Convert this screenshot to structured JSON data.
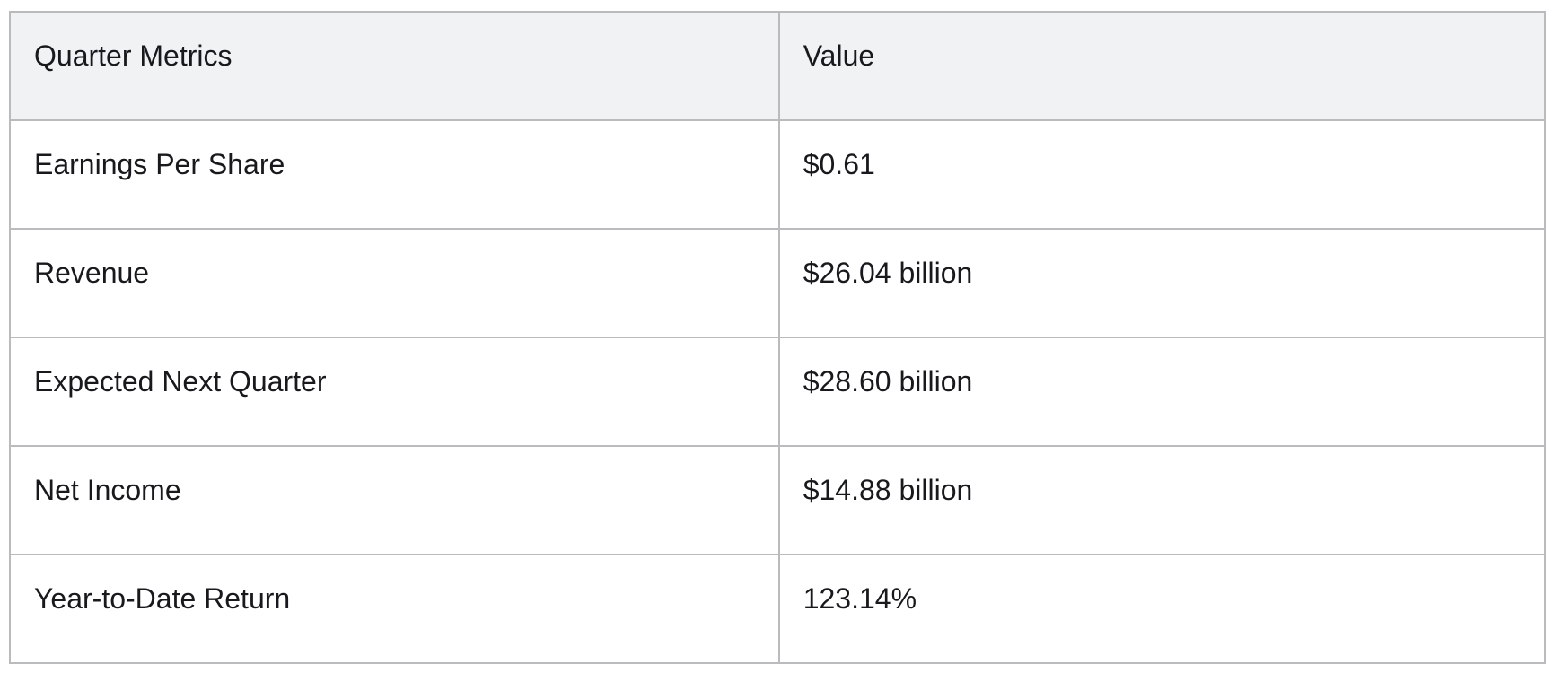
{
  "chart_data": {
    "type": "table",
    "columns": [
      "Quarter Metrics",
      "Value"
    ],
    "rows": [
      [
        "Earnings Per Share",
        "$0.61"
      ],
      [
        "Revenue",
        "$26.04 billion"
      ],
      [
        "Expected Next Quarter",
        "$28.60 billion"
      ],
      [
        "Net Income",
        "$14.88 billion"
      ],
      [
        "Year-to-Date Return",
        "123.14%"
      ]
    ]
  },
  "colors": {
    "header_bg": "#f1f2f4",
    "row_bg": "#ffffff",
    "border": "#b9bbbd",
    "text": "#17191c"
  }
}
